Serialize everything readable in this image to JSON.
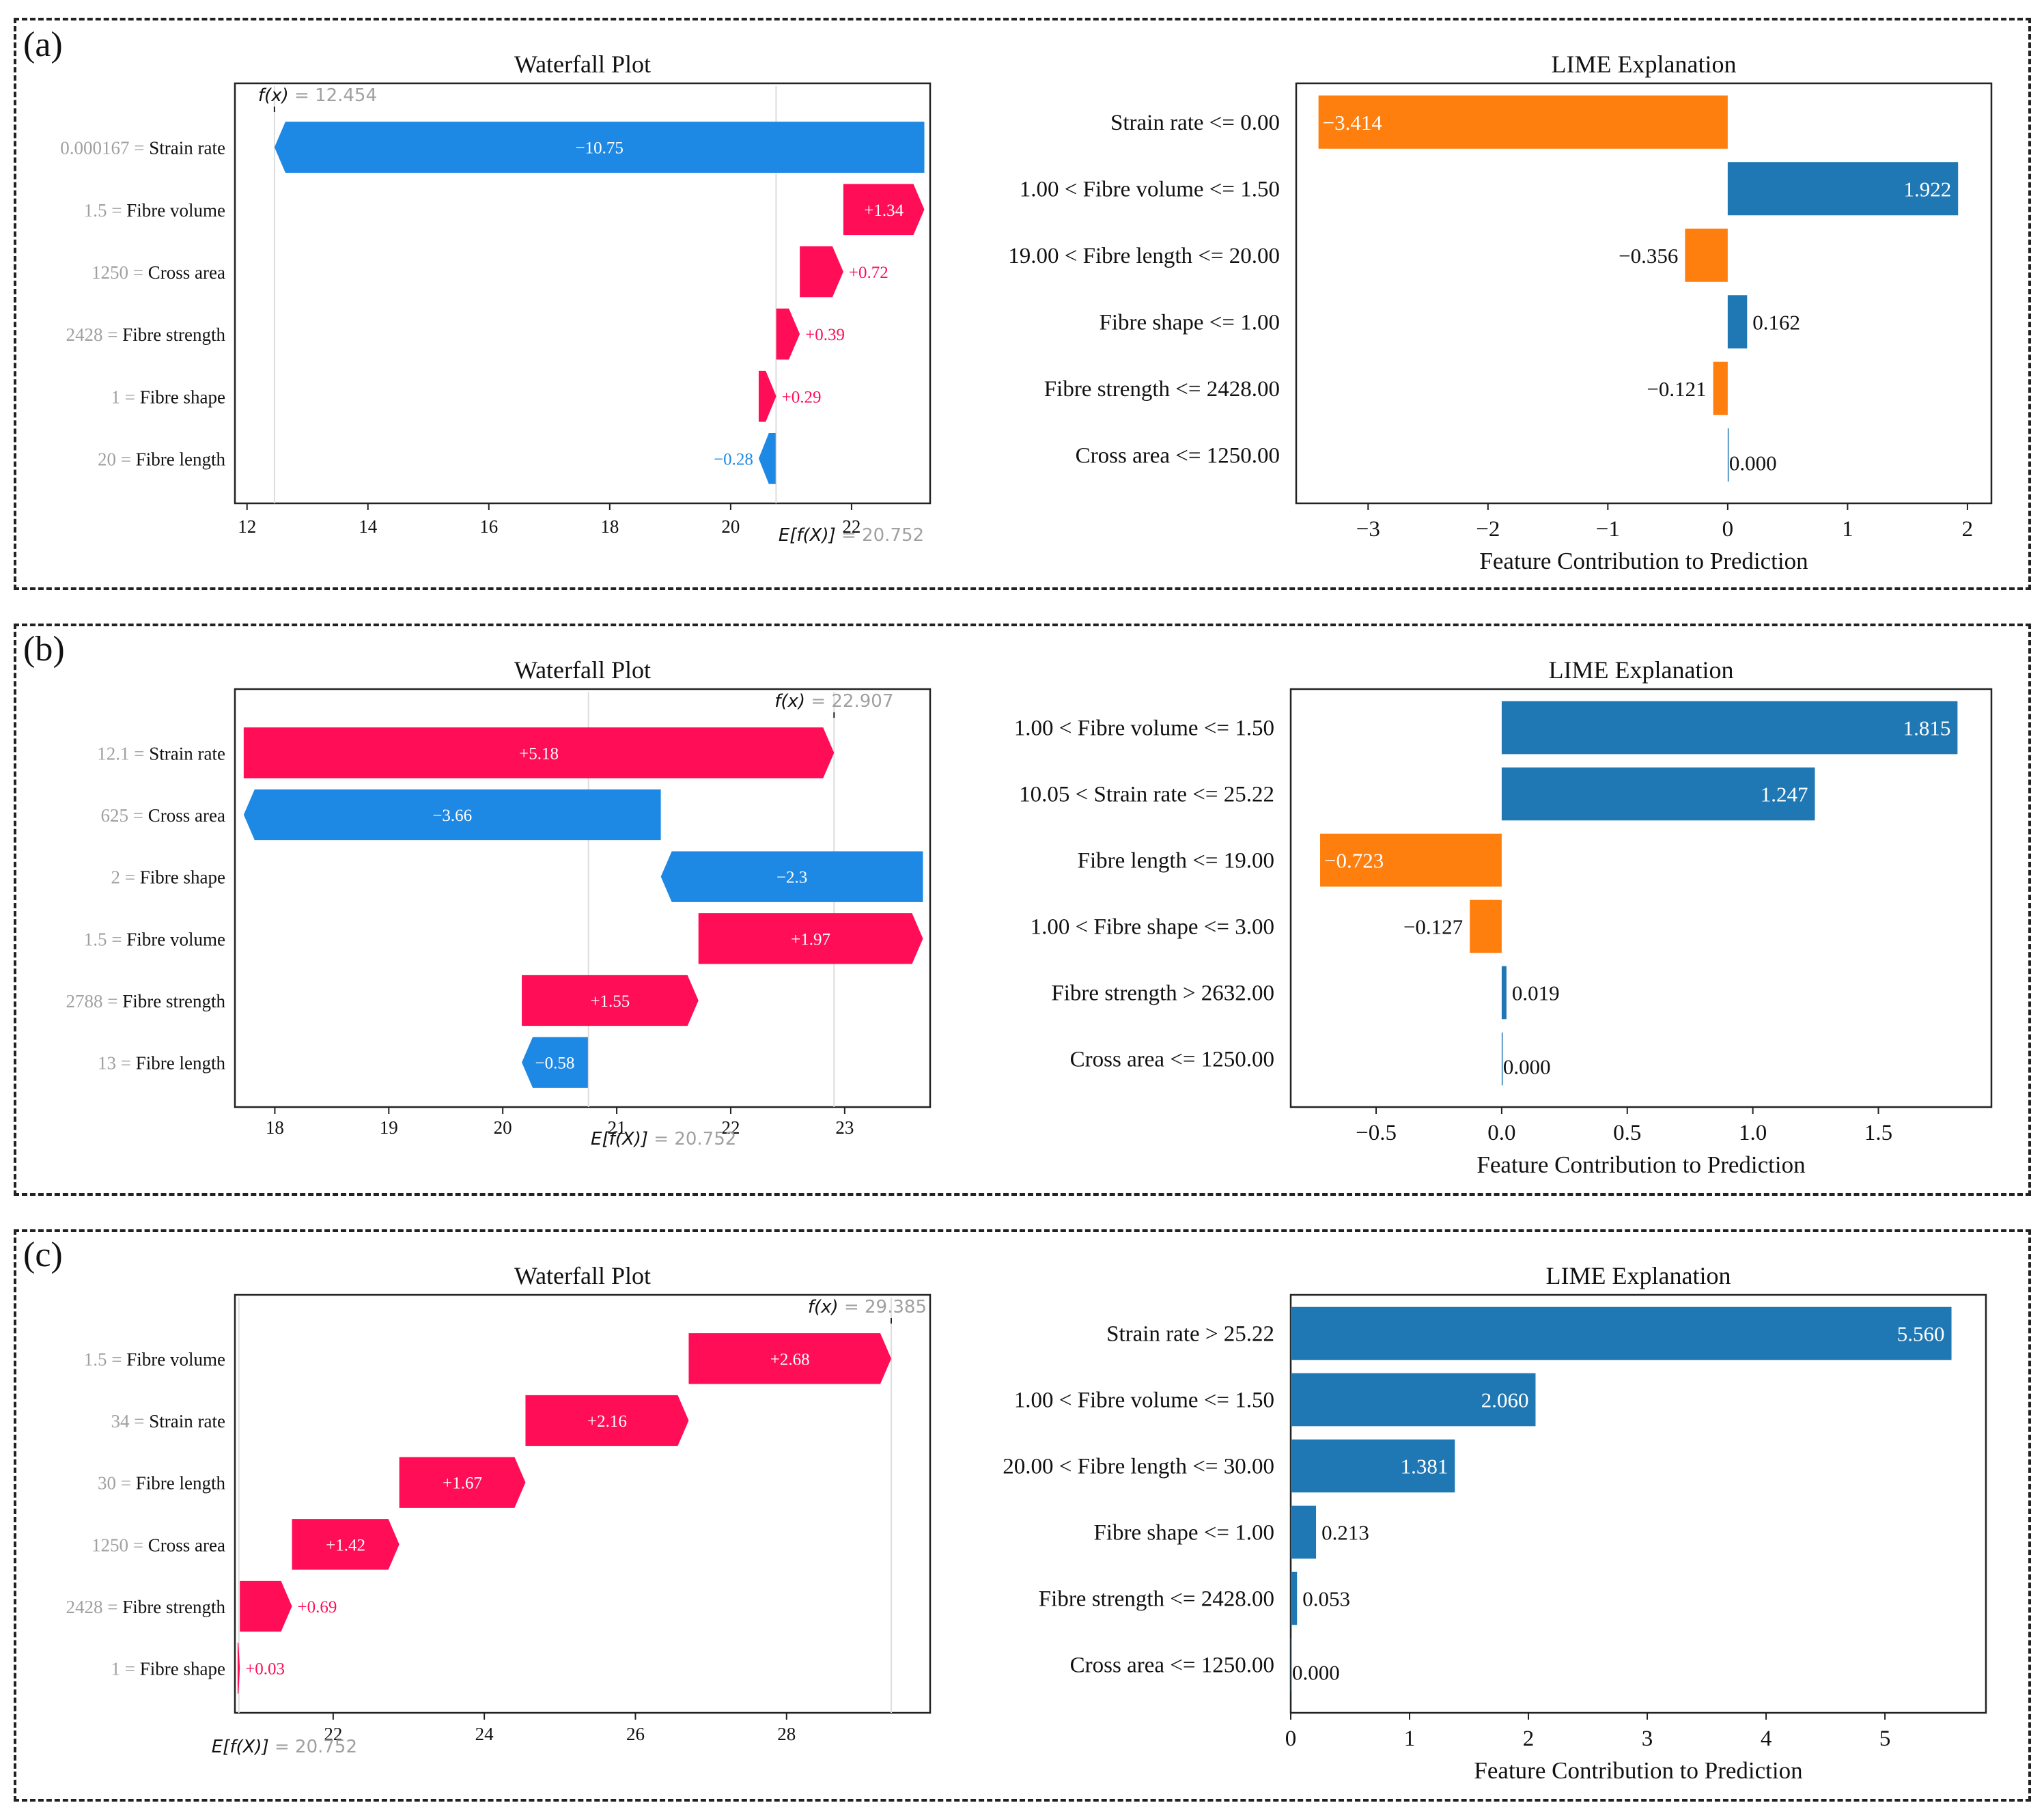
{
  "colors": {
    "shap_positive": "#ff0d57",
    "shap_negative": "#1e88e5",
    "lime_positive": "#1f77b4",
    "lime_negative": "#ff7f0e",
    "muted_text": "#a0a0a0",
    "axis": "#222222"
  },
  "panels": [
    {
      "label": "(a)"
    },
    {
      "label": "(b)"
    },
    {
      "label": "(c)"
    }
  ],
  "chart_data": [
    {
      "panel": "(a)",
      "type": "waterfall",
      "title": "Waterfall Plot",
      "fx_label": "f(x)",
      "fx_value": "= 12.454",
      "fx": 12.454,
      "efx_label": "E[f(X)]",
      "efx_value": "= 20.752",
      "efx": 20.752,
      "xlim": [
        11.8,
        23.3
      ],
      "ticks": [
        12,
        14,
        16,
        18,
        20,
        22
      ],
      "features": [
        {
          "value": "0.000167",
          "name": "Strain rate",
          "contribution": -10.75,
          "label": "−10.75"
        },
        {
          "value": "1.5",
          "name": "Fibre volume",
          "contribution": 1.34,
          "label": "+1.34"
        },
        {
          "value": "1250",
          "name": "Cross area",
          "contribution": 0.72,
          "label": "+0.72"
        },
        {
          "value": "2428",
          "name": "Fibre strength",
          "contribution": 0.39,
          "label": "+0.39"
        },
        {
          "value": "1",
          "name": "Fibre shape",
          "contribution": 0.29,
          "label": "+0.29"
        },
        {
          "value": "20",
          "name": "Fibre length",
          "contribution": -0.28,
          "label": "−0.28"
        }
      ]
    },
    {
      "panel": "(a)",
      "type": "bar",
      "orientation": "horizontal",
      "title": "LIME Explanation",
      "xlabel": "Feature Contribution to Prediction",
      "xlim": [
        -3.6,
        2.2
      ],
      "ticks": [
        -3,
        -2,
        -1,
        0,
        1,
        2
      ],
      "tick_labels": [
        "−3",
        "−2",
        "−1",
        "0",
        "1",
        "2"
      ],
      "categories": [
        "Strain rate <= 0.00",
        "1.00 < Fibre volume <= 1.50",
        "19.00 < Fibre length <= 20.00",
        "Fibre shape <= 1.00",
        "Fibre strength <= 2428.00",
        "Cross area <= 1250.00"
      ],
      "values": [
        -3.414,
        1.922,
        -0.356,
        0.162,
        -0.121,
        0.0
      ],
      "value_labels": [
        "−3.414",
        "1.922",
        "−0.356",
        "0.162",
        "−0.121",
        "0.000"
      ]
    },
    {
      "panel": "(b)",
      "type": "waterfall",
      "title": "Waterfall Plot",
      "fx_label": "f(x)",
      "fx_value": "= 22.907",
      "fx": 22.907,
      "efx_label": "E[f(X)]",
      "efx_value": "= 20.752",
      "efx": 20.752,
      "xlim": [
        17.65,
        23.75
      ],
      "ticks": [
        18,
        19,
        20,
        21,
        22,
        23
      ],
      "features": [
        {
          "value": "12.1",
          "name": "Strain rate",
          "contribution": 5.18,
          "label": "+5.18"
        },
        {
          "value": "625",
          "name": "Cross area",
          "contribution": -3.66,
          "label": "−3.66"
        },
        {
          "value": "2",
          "name": "Fibre shape",
          "contribution": -2.3,
          "label": "−2.3"
        },
        {
          "value": "1.5",
          "name": "Fibre volume",
          "contribution": 1.97,
          "label": "+1.97"
        },
        {
          "value": "2788",
          "name": "Fibre strength",
          "contribution": 1.55,
          "label": "+1.55"
        },
        {
          "value": "13",
          "name": "Fibre length",
          "contribution": -0.58,
          "label": "−0.58"
        }
      ]
    },
    {
      "panel": "(b)",
      "type": "bar",
      "orientation": "horizontal",
      "title": "LIME Explanation",
      "xlabel": "Feature Contribution to Prediction",
      "xlim": [
        -0.84,
        1.95
      ],
      "ticks": [
        -0.5,
        0.0,
        0.5,
        1.0,
        1.5
      ],
      "tick_labels": [
        "−0.5",
        "0.0",
        "0.5",
        "1.0",
        "1.5"
      ],
      "categories": [
        "1.00 < Fibre volume <= 1.50",
        "10.05 < Strain rate <= 25.22",
        "Fibre length <= 19.00",
        "1.00 < Fibre shape <= 3.00",
        "Fibre strength > 2632.00",
        "Cross area <= 1250.00"
      ],
      "values": [
        1.815,
        1.247,
        -0.723,
        -0.127,
        0.019,
        0.0
      ],
      "value_labels": [
        "1.815",
        "1.247",
        "−0.723",
        "−0.127",
        "0.019",
        "0.000"
      ]
    },
    {
      "panel": "(c)",
      "type": "waterfall",
      "title": "Waterfall Plot",
      "fx_label": "f(x)",
      "fx_value": "= 29.385",
      "fx": 29.385,
      "efx_label": "E[f(X)]",
      "efx_value": "= 20.752",
      "efx": 20.752,
      "xlim": [
        20.7,
        29.9
      ],
      "ticks": [
        22,
        24,
        26,
        28
      ],
      "features": [
        {
          "value": "1.5",
          "name": "Fibre volume",
          "contribution": 2.68,
          "label": "+2.68"
        },
        {
          "value": "34",
          "name": "Strain rate",
          "contribution": 2.16,
          "label": "+2.16"
        },
        {
          "value": "30",
          "name": "Fibre length",
          "contribution": 1.67,
          "label": "+1.67"
        },
        {
          "value": "1250",
          "name": "Cross area",
          "contribution": 1.42,
          "label": "+1.42"
        },
        {
          "value": "2428",
          "name": "Fibre strength",
          "contribution": 0.69,
          "label": "+0.69"
        },
        {
          "value": "1",
          "name": "Fibre shape",
          "contribution": 0.03,
          "label": "+0.03"
        }
      ]
    },
    {
      "panel": "(c)",
      "type": "bar",
      "orientation": "horizontal",
      "title": "LIME Explanation",
      "xlabel": "Feature Contribution to Prediction",
      "xlim": [
        0,
        5.85
      ],
      "ticks": [
        0,
        1,
        2,
        3,
        4,
        5
      ],
      "tick_labels": [
        "0",
        "1",
        "2",
        "3",
        "4",
        "5"
      ],
      "categories": [
        "Strain rate > 25.22",
        "1.00 < Fibre volume <= 1.50",
        "20.00 < Fibre length <= 30.00",
        "Fibre shape <= 1.00",
        "Fibre strength <= 2428.00",
        "Cross area <= 1250.00"
      ],
      "values": [
        5.56,
        2.06,
        1.381,
        0.213,
        0.053,
        0.0
      ],
      "value_labels": [
        "5.560",
        "2.060",
        "1.381",
        "0.213",
        "0.053",
        "0.000"
      ]
    }
  ]
}
